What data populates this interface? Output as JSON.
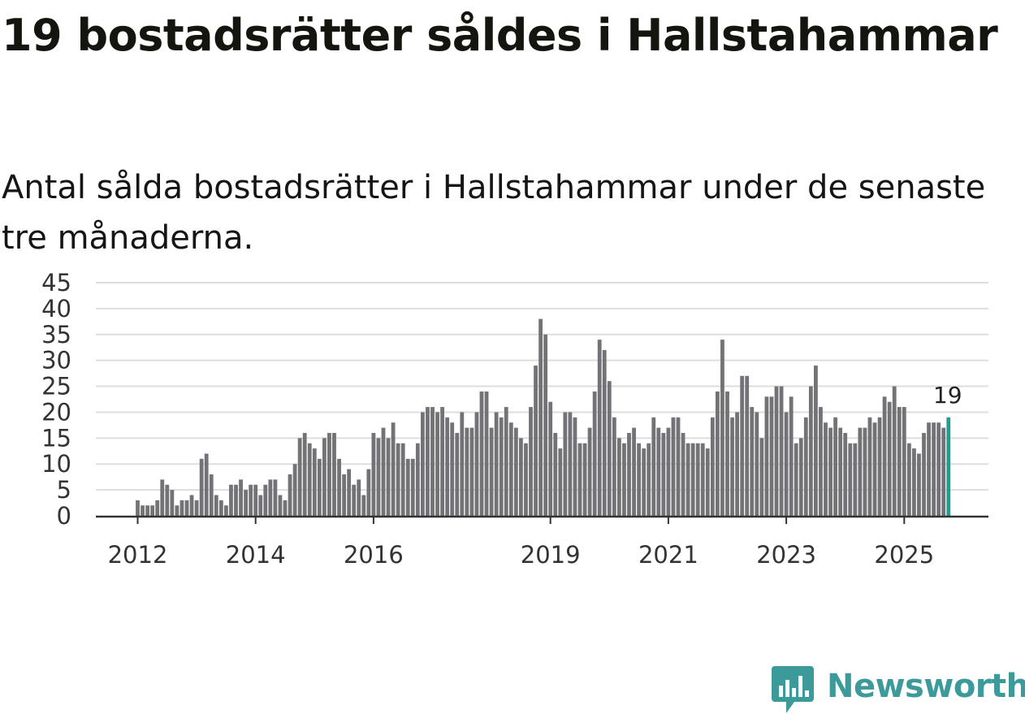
{
  "title": "19 bostadsrätter såldes i Hallstahammar",
  "subtitle": "Antal sålda bostadsrätter i Hallstahammar under de senaste tre månaderna.",
  "colors": {
    "bar": "#737276",
    "highlight": "#1f9e91",
    "grid": "#dddddd",
    "axis": "#333333",
    "brand": "#3d9a9a"
  },
  "logo": {
    "text": "Newsworthy",
    "icon": "chart-bubble-icon"
  },
  "chart_data": {
    "type": "bar",
    "title": "19 bostadsrätter såldes i Hallstahammar",
    "subtitle": "Antal sålda bostadsrätter i Hallstahammar under de senaste tre månaderna.",
    "xlabel": "",
    "ylabel": "",
    "ylim": [
      0,
      45
    ],
    "y_ticks": [
      "0",
      "5",
      "10",
      "15",
      "20",
      "25",
      "30",
      "35",
      "40",
      "45"
    ],
    "x_tick_labels": [
      "2012",
      "2014",
      "2016",
      "2019",
      "2021",
      "2023",
      "2025"
    ],
    "x_tick_years": [
      2012,
      2014,
      2016,
      2019,
      2021,
      2023,
      2025
    ],
    "start": {
      "year": 2012,
      "month": 1
    },
    "grid": true,
    "highlight_label": "19",
    "values": [
      3,
      2,
      2,
      2,
      3,
      7,
      6,
      5,
      2,
      3,
      3,
      4,
      3,
      11,
      12,
      8,
      4,
      3,
      2,
      6,
      6,
      7,
      5,
      6,
      6,
      4,
      6,
      7,
      7,
      4,
      3,
      8,
      10,
      15,
      16,
      14,
      13,
      11,
      15,
      16,
      16,
      11,
      8,
      9,
      6,
      7,
      4,
      9,
      16,
      15,
      17,
      15,
      18,
      14,
      14,
      11,
      11,
      14,
      20,
      21,
      21,
      20,
      21,
      19,
      18,
      16,
      20,
      17,
      17,
      20,
      24,
      24,
      17,
      20,
      19,
      21,
      18,
      17,
      15,
      14,
      21,
      29,
      38,
      35,
      22,
      16,
      13,
      20,
      20,
      19,
      14,
      14,
      17,
      24,
      34,
      32,
      26,
      19,
      15,
      14,
      16,
      17,
      14,
      13,
      14,
      19,
      17,
      16,
      17,
      19,
      19,
      16,
      14,
      14,
      14,
      14,
      13,
      19,
      24,
      34,
      24,
      19,
      20,
      27,
      27,
      21,
      20,
      15,
      23,
      23,
      25,
      25,
      20,
      23,
      14,
      15,
      19,
      25,
      29,
      21,
      18,
      17,
      19,
      17,
      16,
      14,
      14,
      17,
      17,
      19,
      18,
      19,
      23,
      22,
      25,
      21,
      21,
      14,
      13,
      12,
      16,
      18,
      18,
      18,
      17,
      19
    ]
  }
}
